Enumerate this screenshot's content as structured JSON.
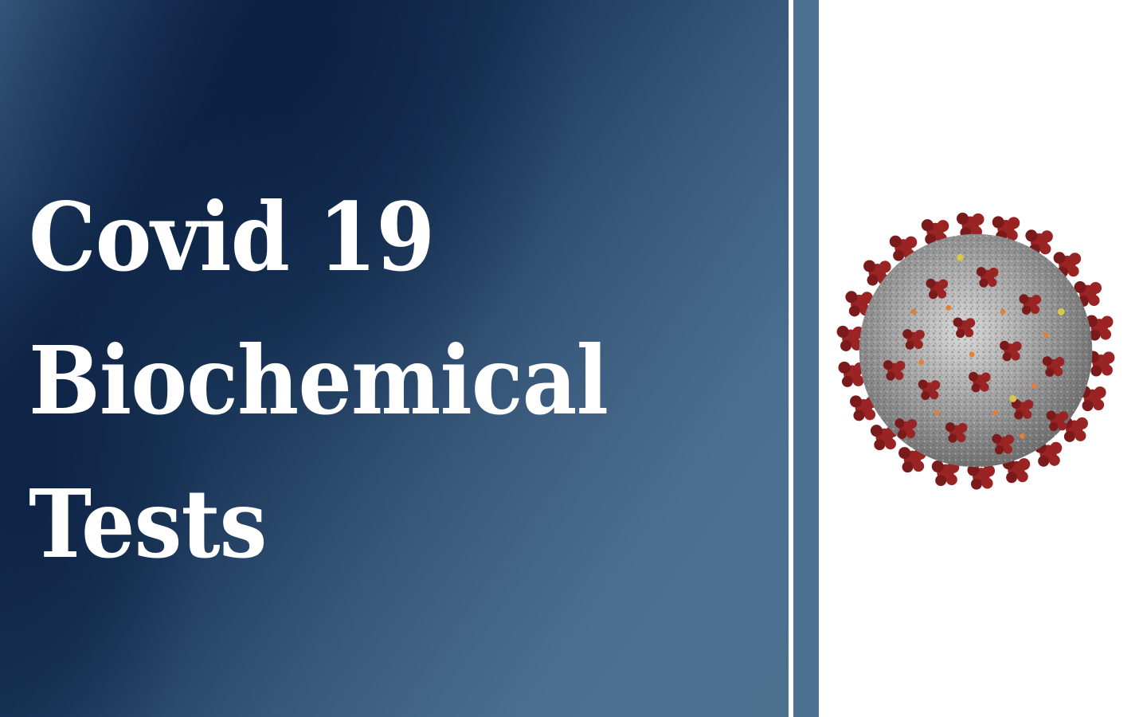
{
  "title": {
    "lines": [
      "Covid 19",
      "Biochemical",
      "Tests"
    ]
  },
  "illustration": {
    "icon": "coronavirus-icon",
    "colors": {
      "spike": "#9a2424",
      "spike_dark": "#7a1a1a",
      "body": "#9a9a9a",
      "accent_orange": "#e0803a",
      "accent_yellow": "#d8c84a"
    }
  },
  "colors": {
    "panel_dark": "#10284a",
    "panel_light": "#4e7190",
    "divider": "#4e7192",
    "title_text": "#ffffff"
  }
}
